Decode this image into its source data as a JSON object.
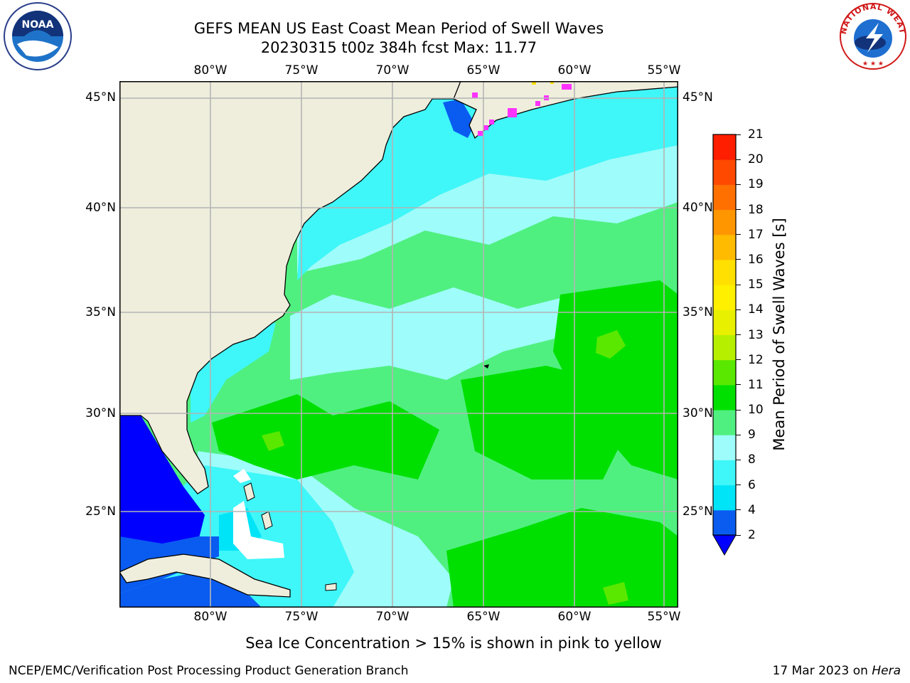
{
  "title": {
    "line1": "GEFS MEAN US East Coast Mean Period of Swell Waves",
    "line2": "20230315 t00z 384h fcst   Max: 11.77"
  },
  "logos": {
    "left": {
      "text": "NOAA",
      "icon": "noaa-logo-icon"
    },
    "right": {
      "text": "NATIONAL WEATHER SERVICE",
      "icon": "nws-logo-icon"
    }
  },
  "map": {
    "lon_labels": [
      "80°W",
      "75°W",
      "70°W",
      "65°W",
      "60°W",
      "55°W"
    ],
    "lat_labels": [
      "45°N",
      "40°N",
      "35°N",
      "30°N",
      "25°N"
    ],
    "lon_range": [
      -85,
      -54.3
    ],
    "lat_range": [
      20,
      46
    ]
  },
  "colorbar": {
    "label": "Mean Period of Swell Waves [s]",
    "ticks": [
      "2",
      "4",
      "6",
      "8",
      "9",
      "10",
      "11",
      "12",
      "13",
      "14",
      "15",
      "16",
      "17",
      "18",
      "19",
      "20",
      "21"
    ],
    "colors": [
      "#0a5cf0",
      "#00e4f8",
      "#3ff6f8",
      "#9efcfa",
      "#50f080",
      "#00e000",
      "#5ae800",
      "#b6f000",
      "#e8f000",
      "#fff000",
      "#ffe000",
      "#ffbb00",
      "#ff9600",
      "#ff7000",
      "#ff4800",
      "#ff1e00"
    ],
    "under_color": "#0000ff"
  },
  "note": "Sea Ice Concentration > 15% is shown in pink to yellow",
  "footer": {
    "left": "NCEP/EMC/Verification Post Processing Product Generation Branch",
    "right_date": "17 Mar 2023 on ",
    "right_machine": "Hera"
  }
}
